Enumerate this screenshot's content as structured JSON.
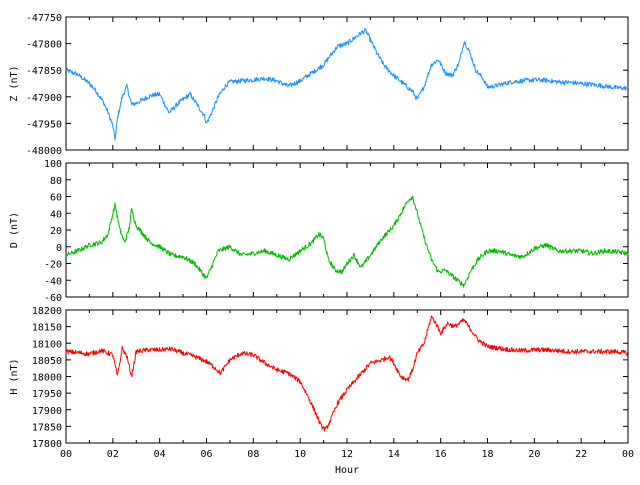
{
  "chart_data": [
    {
      "type": "line",
      "ylabel": "Z (nT)",
      "ylim": [
        -48000,
        -47750
      ],
      "yticks": [
        -47750,
        -47800,
        -47850,
        -47900,
        -47950,
        -48000
      ],
      "xlim": [
        0,
        24
      ],
      "xticks": [
        "",
        "",
        "",
        "",
        "",
        "",
        "",
        "",
        "",
        "",
        "",
        "",
        ""
      ],
      "xlabel": "",
      "grid": false,
      "series": [
        {
          "color": "#1e90ff",
          "x": [
            0,
            0.5,
            1.0,
            1.3,
            1.6,
            1.8,
            2.0,
            2.1,
            2.2,
            2.4,
            2.6,
            2.8,
            3.0,
            3.3,
            3.6,
            4.0,
            4.4,
            4.8,
            5.0,
            5.3,
            5.6,
            5.9,
            6.0,
            6.2,
            6.5,
            6.8,
            7.0,
            7.5,
            8.0,
            8.5,
            9.0,
            9.5,
            10.0,
            10.5,
            11.0,
            11.3,
            11.6,
            12.0,
            12.3,
            12.6,
            12.8,
            13.0,
            13.3,
            13.6,
            14.0,
            14.4,
            14.8,
            15.0,
            15.3,
            15.6,
            15.9,
            16.2,
            16.5,
            16.8,
            17.0,
            17.2,
            17.5,
            17.8,
            18.0,
            18.5,
            19.0,
            19.5,
            20.0,
            20.5,
            21.0,
            21.5,
            22.0,
            22.5,
            23.0,
            23.5,
            24.0
          ],
          "y": [
            -47850,
            -47858,
            -47875,
            -47890,
            -47910,
            -47930,
            -47955,
            -47980,
            -47940,
            -47900,
            -47880,
            -47915,
            -47912,
            -47905,
            -47898,
            -47895,
            -47930,
            -47912,
            -47905,
            -47895,
            -47915,
            -47935,
            -47950,
            -47932,
            -47900,
            -47880,
            -47872,
            -47870,
            -47868,
            -47865,
            -47870,
            -47880,
            -47870,
            -47855,
            -47840,
            -47822,
            -47805,
            -47800,
            -47790,
            -47780,
            -47775,
            -47793,
            -47820,
            -47842,
            -47860,
            -47875,
            -47890,
            -47905,
            -47880,
            -47840,
            -47830,
            -47855,
            -47860,
            -47835,
            -47795,
            -47812,
            -47850,
            -47865,
            -47882,
            -47878,
            -47872,
            -47870,
            -47868,
            -47869,
            -47872,
            -47873,
            -47875,
            -47877,
            -47880,
            -47883,
            -47884
          ]
        }
      ]
    },
    {
      "type": "line",
      "ylabel": "D (nT)",
      "ylim": [
        -60,
        100
      ],
      "yticks": [
        100,
        80,
        60,
        40,
        20,
        0,
        -20,
        -40,
        -60
      ],
      "xlim": [
        0,
        24
      ],
      "xticks": [
        "",
        "",
        "",
        "",
        "",
        "",
        "",
        "",
        "",
        "",
        "",
        "",
        ""
      ],
      "xlabel": "",
      "grid": false,
      "series": [
        {
          "color": "#00bb00",
          "x": [
            0,
            0.5,
            1.0,
            1.5,
            1.8,
            2.0,
            2.1,
            2.3,
            2.5,
            2.7,
            2.8,
            3.0,
            3.3,
            3.6,
            4.0,
            4.5,
            5.0,
            5.5,
            6.0,
            6.2,
            6.5,
            7.0,
            7.5,
            8.0,
            8.5,
            9.0,
            9.5,
            10.0,
            10.5,
            10.8,
            11.0,
            11.2,
            11.5,
            11.8,
            12.0,
            12.3,
            12.6,
            13.0,
            13.5,
            14.0,
            14.3,
            14.6,
            14.8,
            15.0,
            15.3,
            15.6,
            15.9,
            16.2,
            16.5,
            16.8,
            17.0,
            17.3,
            17.6,
            18.0,
            18.5,
            19.0,
            19.5,
            20.0,
            20.5,
            21.0,
            21.5,
            22.0,
            22.5,
            23.0,
            23.5,
            24.0
          ],
          "y": [
            -10,
            -5,
            2,
            5,
            15,
            40,
            50,
            20,
            5,
            22,
            45,
            25,
            15,
            5,
            0,
            -10,
            -12,
            -20,
            -38,
            -25,
            -5,
            0,
            -10,
            -8,
            -5,
            -10,
            -15,
            -5,
            5,
            15,
            10,
            -15,
            -28,
            -30,
            -20,
            -10,
            -25,
            -10,
            10,
            25,
            40,
            55,
            60,
            40,
            10,
            -15,
            -30,
            -28,
            -35,
            -42,
            -46,
            -28,
            -15,
            -5,
            -5,
            -10,
            -12,
            -2,
            2,
            -5,
            -5,
            -5,
            -8,
            -5,
            -6,
            -8
          ]
        }
      ]
    },
    {
      "type": "line",
      "ylabel": "H (nT)",
      "ylim": [
        17800,
        18200
      ],
      "yticks": [
        18200,
        18150,
        18100,
        18050,
        18000,
        17950,
        17900,
        17850,
        17800
      ],
      "xlim": [
        0,
        24
      ],
      "xticks": [
        "00",
        "02",
        "04",
        "06",
        "08",
        "10",
        "12",
        "14",
        "16",
        "18",
        "20",
        "22",
        "00"
      ],
      "xlabel": "Hour",
      "grid": false,
      "series": [
        {
          "color": "#ff0000",
          "x": [
            0,
            0.5,
            1.0,
            1.5,
            2.0,
            2.2,
            2.4,
            2.6,
            2.8,
            3.0,
            3.5,
            4.0,
            4.5,
            5.0,
            5.5,
            6.0,
            6.3,
            6.6,
            7.0,
            7.5,
            8.0,
            8.5,
            9.0,
            9.5,
            10.0,
            10.3,
            10.6,
            10.9,
            11.1,
            11.3,
            11.6,
            12.0,
            12.5,
            13.0,
            13.5,
            13.8,
            14.0,
            14.3,
            14.6,
            14.8,
            15.0,
            15.3,
            15.6,
            15.8,
            16.0,
            16.3,
            16.6,
            17.0,
            17.3,
            17.6,
            18.0,
            18.5,
            19.0,
            19.5,
            20.0,
            20.5,
            21.0,
            21.5,
            22.0,
            22.5,
            23.0,
            23.5,
            24.0
          ],
          "y": [
            18075,
            18072,
            18068,
            18078,
            18065,
            18000,
            18085,
            18060,
            18000,
            18075,
            18080,
            18080,
            18083,
            18070,
            18060,
            18045,
            18030,
            18010,
            18050,
            18070,
            18065,
            18040,
            18020,
            18010,
            17985,
            17945,
            17900,
            17850,
            17840,
            17870,
            17920,
            17960,
            18000,
            18040,
            18050,
            18060,
            18040,
            18000,
            17990,
            18020,
            18070,
            18100,
            18180,
            18160,
            18130,
            18160,
            18150,
            18170,
            18140,
            18110,
            18090,
            18085,
            18080,
            18078,
            18080,
            18080,
            18078,
            18075,
            18075,
            18075,
            18075,
            18075,
            18070
          ]
        }
      ]
    }
  ]
}
